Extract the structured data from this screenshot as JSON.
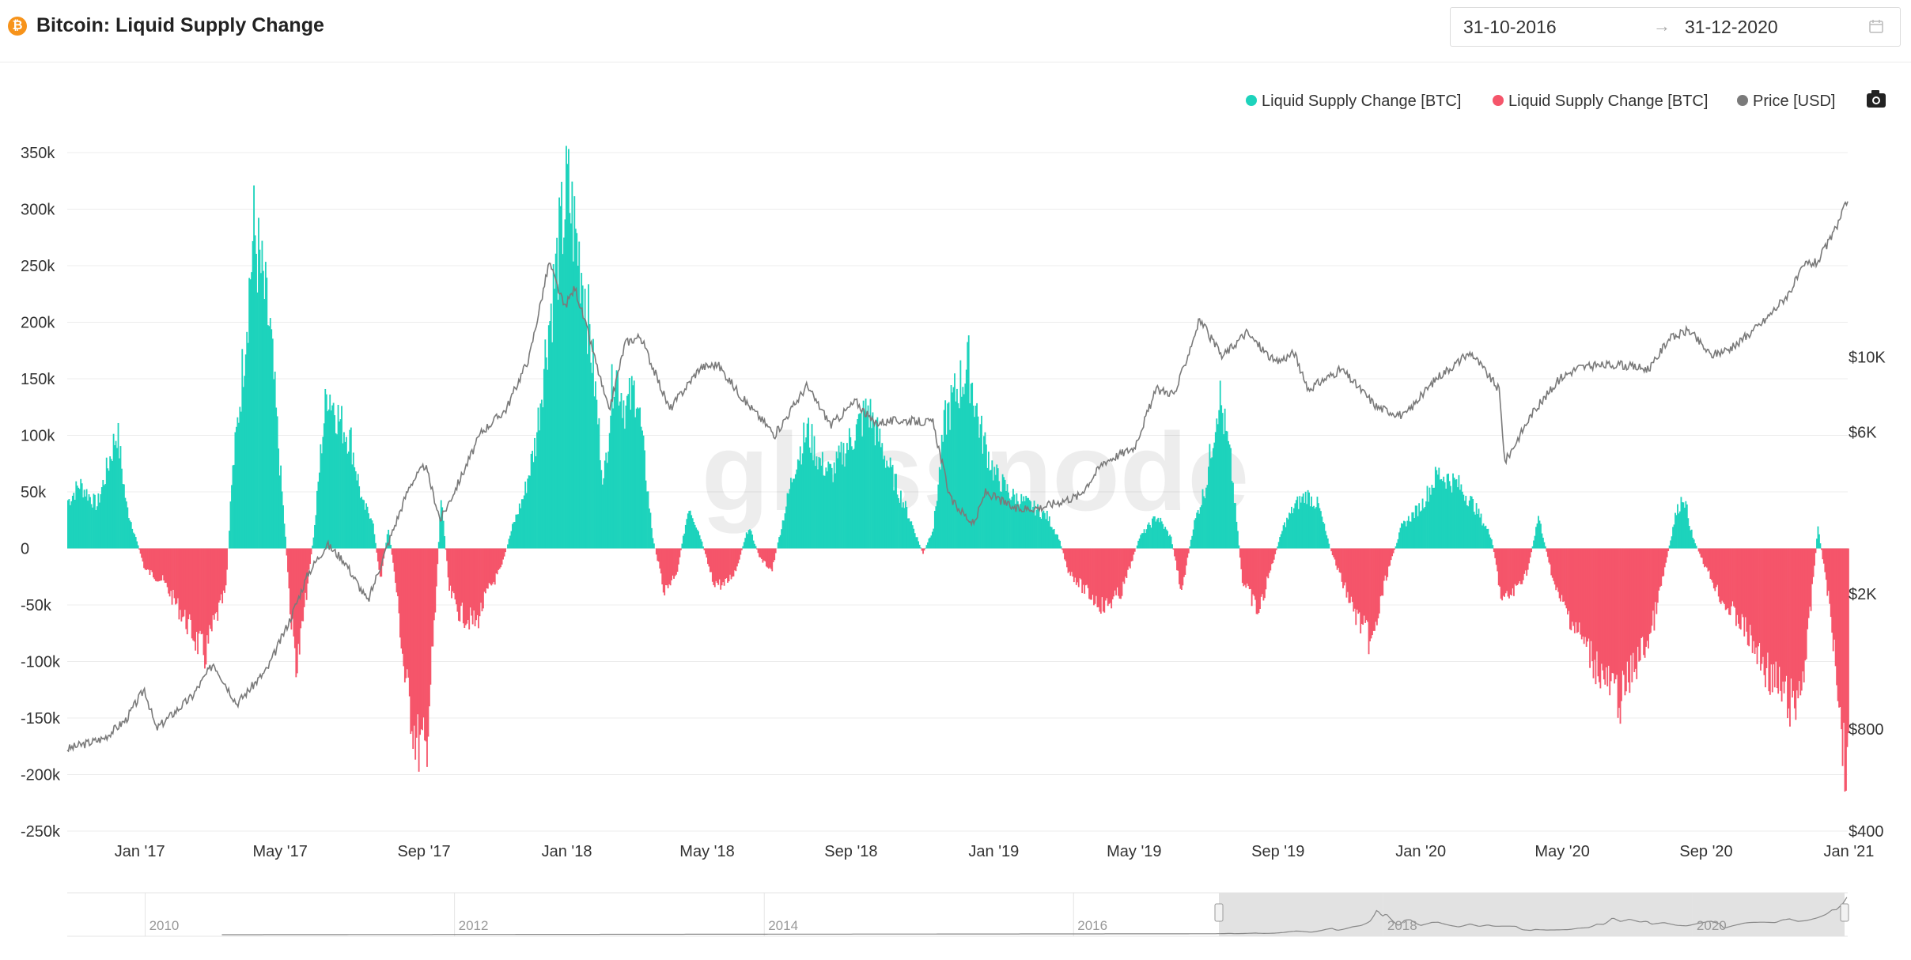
{
  "header": {
    "title": "Bitcoin: Liquid Supply Change",
    "icon": "bitcoin-icon",
    "date_start": "31-10-2016",
    "date_arrow": "→",
    "date_end": "31-12-2020"
  },
  "colors": {
    "positive": "#1dd3bc",
    "negative": "#f5556a",
    "price": "#7a7a7a",
    "grid": "#ececec"
  },
  "watermark": "glassnode",
  "navigator": {
    "labels": [
      "2010",
      "2012",
      "2014",
      "2016",
      "2018",
      "2020"
    ]
  },
  "chart_data": {
    "type": "bar",
    "title": "Bitcoin: Liquid Supply Change",
    "legend": [
      {
        "name": "Liquid Supply Change [BTC]",
        "color": "#1dd3bc"
      },
      {
        "name": "Liquid Supply Change [BTC]",
        "color": "#f5556a"
      },
      {
        "name": "Price [USD]",
        "color": "#7a7a7a"
      }
    ],
    "legend_position": "top-right",
    "x_range": [
      "2016-10-31",
      "2020-12-31"
    ],
    "x_ticks": [
      "Jan '17",
      "May '17",
      "Sep '17",
      "Jan '18",
      "May '18",
      "Sep '18",
      "Jan '19",
      "May '19",
      "Sep '19",
      "Jan '20",
      "May '20",
      "Sep '20",
      "Jan '21"
    ],
    "y_left": {
      "range": [
        -250000,
        350000
      ],
      "ticks": [
        350000,
        300000,
        250000,
        200000,
        150000,
        100000,
        50000,
        0,
        -50000,
        -100000,
        -150000,
        -200000,
        -250000
      ],
      "tick_labels": [
        "350k",
        "300k",
        "250k",
        "200k",
        "150k",
        "100k",
        "50k",
        "0",
        "-50k",
        "-100k",
        "-150k",
        "-200k",
        "-250k"
      ]
    },
    "y_right": {
      "scale": "log",
      "range": [
        400,
        40000
      ],
      "ticks": [
        10000,
        6000,
        2000,
        800,
        400
      ],
      "tick_labels": [
        "$10K",
        "$6K",
        "$2K",
        "$800",
        "$400"
      ]
    },
    "supply_change_btc": {
      "note": "approximate daily values, key points (date, BTC)",
      "points": [
        [
          "2016-11-01",
          45000
        ],
        [
          "2016-11-10",
          60000
        ],
        [
          "2016-11-25",
          40000
        ],
        [
          "2016-12-05",
          80000
        ],
        [
          "2016-12-12",
          110000
        ],
        [
          "2016-12-20",
          40000
        ],
        [
          "2016-12-28",
          10000
        ],
        [
          "2017-01-05",
          -20000
        ],
        [
          "2017-01-20",
          -30000
        ],
        [
          "2017-02-05",
          -60000
        ],
        [
          "2017-02-15",
          -80000
        ],
        [
          "2017-02-25",
          -100000
        ],
        [
          "2017-03-05",
          -70000
        ],
        [
          "2017-03-15",
          -40000
        ],
        [
          "2017-03-20",
          60000
        ],
        [
          "2017-03-28",
          150000
        ],
        [
          "2017-04-03",
          230000
        ],
        [
          "2017-04-08",
          295000
        ],
        [
          "2017-04-15",
          250000
        ],
        [
          "2017-04-22",
          200000
        ],
        [
          "2017-04-30",
          80000
        ],
        [
          "2017-05-05",
          10000
        ],
        [
          "2017-05-10",
          -70000
        ],
        [
          "2017-05-15",
          -110000
        ],
        [
          "2017-05-22",
          -50000
        ],
        [
          "2017-05-30",
          20000
        ],
        [
          "2017-06-05",
          100000
        ],
        [
          "2017-06-10",
          150000
        ],
        [
          "2017-06-20",
          120000
        ],
        [
          "2017-06-30",
          100000
        ],
        [
          "2017-07-10",
          40000
        ],
        [
          "2017-07-18",
          30000
        ],
        [
          "2017-07-25",
          -30000
        ],
        [
          "2017-08-01",
          20000
        ],
        [
          "2017-08-08",
          -40000
        ],
        [
          "2017-08-15",
          -120000
        ],
        [
          "2017-08-25",
          -180000
        ],
        [
          "2017-09-02",
          -190000
        ],
        [
          "2017-09-10",
          -60000
        ],
        [
          "2017-09-15",
          50000
        ],
        [
          "2017-09-22",
          -40000
        ],
        [
          "2017-10-01",
          -60000
        ],
        [
          "2017-10-15",
          -70000
        ],
        [
          "2017-10-25",
          -40000
        ],
        [
          "2017-11-05",
          -20000
        ],
        [
          "2017-11-15",
          20000
        ],
        [
          "2017-11-25",
          50000
        ],
        [
          "2017-12-05",
          100000
        ],
        [
          "2017-12-15",
          200000
        ],
        [
          "2017-12-25",
          280000
        ],
        [
          "2018-01-01",
          335000
        ],
        [
          "2018-01-08",
          290000
        ],
        [
          "2018-01-15",
          250000
        ],
        [
          "2018-01-22",
          180000
        ],
        [
          "2018-02-01",
          60000
        ],
        [
          "2018-02-10",
          170000
        ],
        [
          "2018-02-20",
          130000
        ],
        [
          "2018-03-01",
          150000
        ],
        [
          "2018-03-10",
          60000
        ],
        [
          "2018-03-15",
          10000
        ],
        [
          "2018-03-25",
          -40000
        ],
        [
          "2018-04-05",
          -20000
        ],
        [
          "2018-04-15",
          40000
        ],
        [
          "2018-04-25",
          10000
        ],
        [
          "2018-05-05",
          -30000
        ],
        [
          "2018-05-15",
          -35000
        ],
        [
          "2018-05-25",
          -20000
        ],
        [
          "2018-06-05",
          20000
        ],
        [
          "2018-06-15",
          -10000
        ],
        [
          "2018-06-25",
          -20000
        ],
        [
          "2018-07-05",
          30000
        ],
        [
          "2018-07-15",
          80000
        ],
        [
          "2018-07-25",
          110000
        ],
        [
          "2018-08-05",
          80000
        ],
        [
          "2018-08-15",
          70000
        ],
        [
          "2018-08-25",
          90000
        ],
        [
          "2018-09-05",
          110000
        ],
        [
          "2018-09-15",
          130000
        ],
        [
          "2018-09-25",
          100000
        ],
        [
          "2018-10-05",
          70000
        ],
        [
          "2018-10-20",
          30000
        ],
        [
          "2018-11-01",
          -5000
        ],
        [
          "2018-11-10",
          20000
        ],
        [
          "2018-11-20",
          120000
        ],
        [
          "2018-12-01",
          150000
        ],
        [
          "2018-12-10",
          170000
        ],
        [
          "2018-12-20",
          110000
        ],
        [
          "2019-01-01",
          70000
        ],
        [
          "2019-01-15",
          50000
        ],
        [
          "2019-02-01",
          40000
        ],
        [
          "2019-02-15",
          30000
        ],
        [
          "2019-02-25",
          10000
        ],
        [
          "2019-03-05",
          -20000
        ],
        [
          "2019-03-20",
          -40000
        ],
        [
          "2019-04-05",
          -55000
        ],
        [
          "2019-04-20",
          -40000
        ],
        [
          "2019-05-05",
          10000
        ],
        [
          "2019-05-20",
          30000
        ],
        [
          "2019-06-01",
          10000
        ],
        [
          "2019-06-10",
          -40000
        ],
        [
          "2019-06-20",
          20000
        ],
        [
          "2019-07-01",
          60000
        ],
        [
          "2019-07-12",
          145000
        ],
        [
          "2019-07-22",
          80000
        ],
        [
          "2019-08-01",
          -30000
        ],
        [
          "2019-08-15",
          -60000
        ],
        [
          "2019-08-25",
          -20000
        ],
        [
          "2019-09-05",
          20000
        ],
        [
          "2019-09-15",
          40000
        ],
        [
          "2019-09-25",
          50000
        ],
        [
          "2019-10-05",
          40000
        ],
        [
          "2019-10-15",
          0
        ],
        [
          "2019-10-25",
          -30000
        ],
        [
          "2019-11-05",
          -60000
        ],
        [
          "2019-11-20",
          -90000
        ],
        [
          "2019-12-01",
          -30000
        ],
        [
          "2019-12-15",
          20000
        ],
        [
          "2020-01-01",
          40000
        ],
        [
          "2020-01-15",
          70000
        ],
        [
          "2020-02-01",
          60000
        ],
        [
          "2020-02-15",
          40000
        ],
        [
          "2020-03-01",
          10000
        ],
        [
          "2020-03-10",
          -50000
        ],
        [
          "2020-03-20",
          -40000
        ],
        [
          "2020-04-01",
          -20000
        ],
        [
          "2020-04-10",
          30000
        ],
        [
          "2020-04-25",
          -40000
        ],
        [
          "2020-05-10",
          -70000
        ],
        [
          "2020-05-25",
          -100000
        ],
        [
          "2020-06-10",
          -130000
        ],
        [
          "2020-06-20",
          -140000
        ],
        [
          "2020-07-01",
          -110000
        ],
        [
          "2020-07-15",
          -80000
        ],
        [
          "2020-07-25",
          -30000
        ],
        [
          "2020-08-05",
          30000
        ],
        [
          "2020-08-12",
          50000
        ],
        [
          "2020-08-20",
          10000
        ],
        [
          "2020-09-01",
          -20000
        ],
        [
          "2020-09-15",
          -50000
        ],
        [
          "2020-10-01",
          -70000
        ],
        [
          "2020-10-15",
          -100000
        ],
        [
          "2020-11-01",
          -130000
        ],
        [
          "2020-11-15",
          -150000
        ],
        [
          "2020-11-25",
          -100000
        ],
        [
          "2020-12-05",
          20000
        ],
        [
          "2020-12-12",
          -30000
        ],
        [
          "2020-12-20",
          -100000
        ],
        [
          "2020-12-28",
          -200000
        ]
      ]
    },
    "price_usd": {
      "scale": "log",
      "points": [
        [
          "2016-11-01",
          700
        ],
        [
          "2016-12-01",
          750
        ],
        [
          "2016-12-20",
          850
        ],
        [
          "2017-01-05",
          1050
        ],
        [
          "2017-01-15",
          800
        ],
        [
          "2017-02-15",
          1000
        ],
        [
          "2017-03-05",
          1250
        ],
        [
          "2017-03-25",
          950
        ],
        [
          "2017-04-20",
          1200
        ],
        [
          "2017-05-10",
          1700
        ],
        [
          "2017-05-25",
          2300
        ],
        [
          "2017-06-10",
          2800
        ],
        [
          "2017-06-25",
          2500
        ],
        [
          "2017-07-15",
          1900
        ],
        [
          "2017-08-01",
          2800
        ],
        [
          "2017-08-20",
          4200
        ],
        [
          "2017-09-02",
          4800
        ],
        [
          "2017-09-15",
          3300
        ],
        [
          "2017-10-01",
          4300
        ],
        [
          "2017-10-20",
          6000
        ],
        [
          "2017-11-10",
          7000
        ],
        [
          "2017-11-30",
          10000
        ],
        [
          "2017-12-17",
          19000
        ],
        [
          "2017-12-30",
          14000
        ],
        [
          "2018-01-08",
          16000
        ],
        [
          "2018-01-20",
          11500
        ],
        [
          "2018-02-06",
          6900
        ],
        [
          "2018-02-20",
          11000
        ],
        [
          "2018-03-05",
          11500
        ],
        [
          "2018-03-30",
          7000
        ],
        [
          "2018-04-25",
          9300
        ],
        [
          "2018-05-10",
          9500
        ],
        [
          "2018-06-01",
          7500
        ],
        [
          "2018-06-28",
          5900
        ],
        [
          "2018-07-25",
          8200
        ],
        [
          "2018-08-15",
          6300
        ],
        [
          "2018-09-05",
          7400
        ],
        [
          "2018-09-20",
          6400
        ],
        [
          "2018-10-15",
          6500
        ],
        [
          "2018-11-10",
          6400
        ],
        [
          "2018-11-25",
          3800
        ],
        [
          "2018-12-15",
          3200
        ],
        [
          "2018-12-25",
          4000
        ],
        [
          "2019-01-20",
          3550
        ],
        [
          "2019-02-10",
          3600
        ],
        [
          "2019-03-15",
          3900
        ],
        [
          "2019-04-05",
          4900
        ],
        [
          "2019-05-01",
          5400
        ],
        [
          "2019-05-20",
          8000
        ],
        [
          "2019-06-05",
          7800
        ],
        [
          "2019-06-26",
          12900
        ],
        [
          "2019-07-15",
          10000
        ],
        [
          "2019-08-05",
          11800
        ],
        [
          "2019-08-30",
          9600
        ],
        [
          "2019-09-15",
          10300
        ],
        [
          "2019-09-26",
          8000
        ],
        [
          "2019-10-25",
          9200
        ],
        [
          "2019-11-25",
          7100
        ],
        [
          "2019-12-18",
          6700
        ],
        [
          "2020-01-15",
          8700
        ],
        [
          "2020-02-13",
          10300
        ],
        [
          "2020-03-08",
          8000
        ],
        [
          "2020-03-13",
          4900
        ],
        [
          "2020-04-05",
          6800
        ],
        [
          "2020-04-30",
          8700
        ],
        [
          "2020-05-15",
          9300
        ],
        [
          "2020-06-15",
          9500
        ],
        [
          "2020-07-15",
          9200
        ],
        [
          "2020-07-30",
          11200
        ],
        [
          "2020-08-17",
          12000
        ],
        [
          "2020-09-05",
          10100
        ],
        [
          "2020-09-25",
          10700
        ],
        [
          "2020-10-21",
          12800
        ],
        [
          "2020-11-10",
          15300
        ],
        [
          "2020-11-25",
          18800
        ],
        [
          "2020-12-05",
          19000
        ],
        [
          "2020-12-20",
          23500
        ],
        [
          "2020-12-31",
          29000
        ]
      ]
    }
  }
}
